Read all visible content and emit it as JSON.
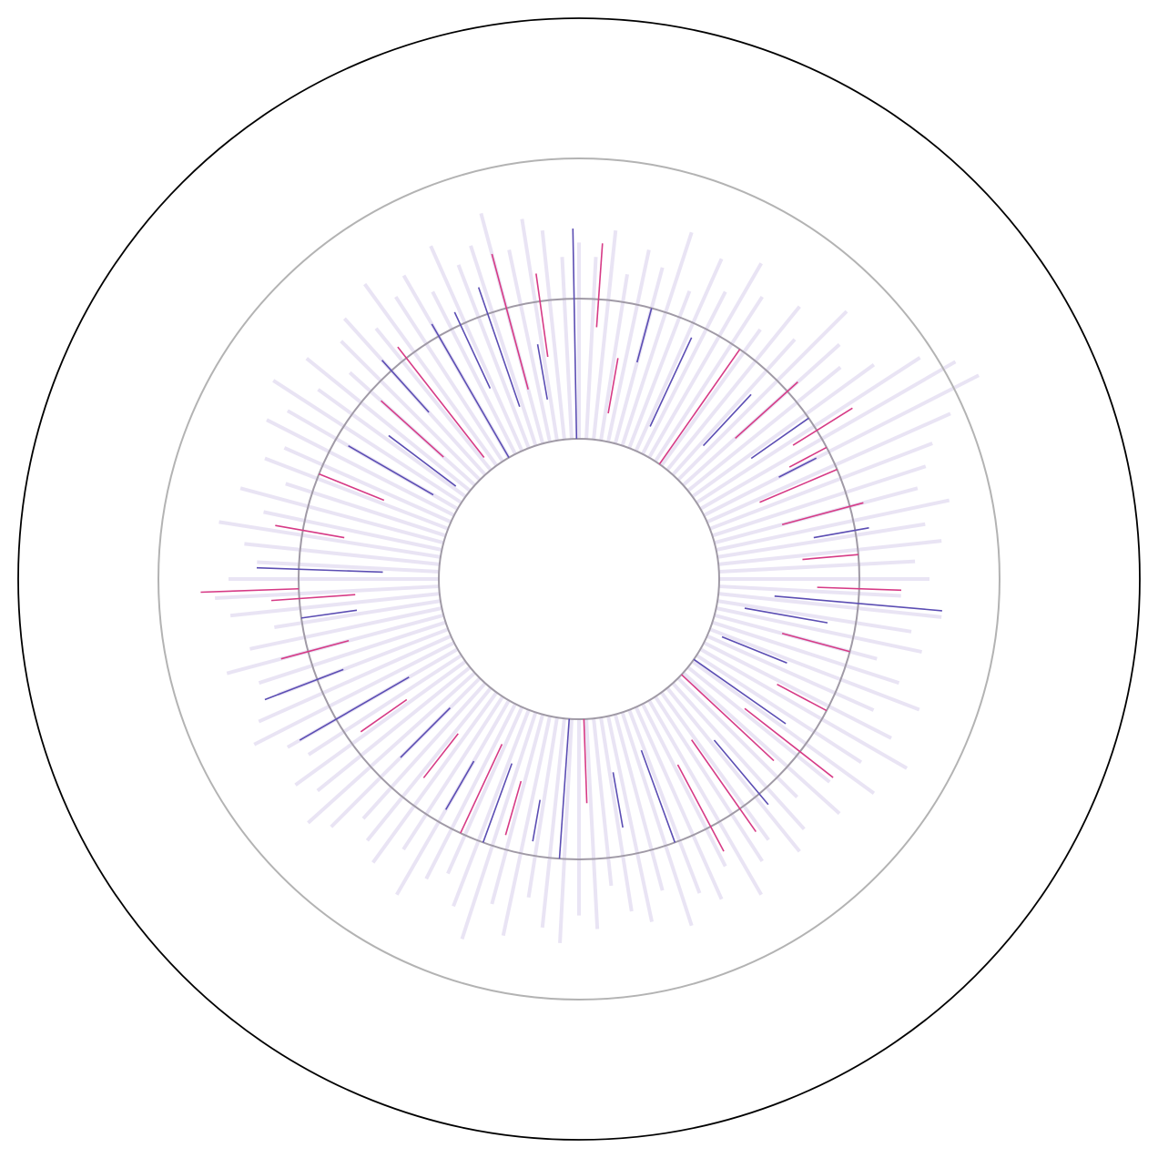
{
  "chart_data": {
    "type": "radial",
    "rlim": [
      0,
      4
    ],
    "rticks": [
      1,
      2,
      3,
      4
    ],
    "xlim": [
      0,
      360
    ],
    "background": {
      "color": "#e6e0f3",
      "x": [
        0,
        3,
        6,
        9,
        12,
        15,
        18,
        21,
        24,
        27,
        30,
        33,
        36,
        39,
        42,
        45,
        48,
        51,
        54,
        57,
        60,
        63,
        66,
        69,
        72,
        75,
        78,
        81,
        84,
        87,
        90,
        93,
        96,
        99,
        102,
        105,
        108,
        111,
        114,
        117,
        120,
        123,
        126,
        129,
        132,
        135,
        138,
        141,
        144,
        147,
        150,
        153,
        156,
        159,
        162,
        165,
        168,
        171,
        174,
        177,
        180,
        183,
        186,
        189,
        192,
        195,
        198,
        201,
        204,
        207,
        210,
        213,
        216,
        219,
        222,
        225,
        228,
        231,
        234,
        237,
        240,
        243,
        246,
        249,
        252,
        255,
        258,
        261,
        264,
        267,
        270,
        273,
        276,
        279,
        282,
        285,
        288,
        291,
        294,
        297,
        300,
        303,
        306,
        309,
        312,
        315,
        318,
        321,
        324,
        327,
        330,
        333,
        336,
        339,
        342,
        345,
        348,
        351,
        354,
        357
      ],
      "values": [
        2.4,
        2.3,
        2.5,
        2.2,
        2.4,
        2.3,
        2.6,
        2.2,
        2.5,
        2.3,
        2.6,
        2.4,
        2.2,
        2.5,
        2.3,
        2.7,
        2.5,
        2.4,
        2.6,
        2.9,
        3.1,
        3.2,
        2.9,
        2.7,
        2.6,
        2.5,
        2.7,
        2.5,
        2.6,
        2.4,
        2.5,
        2.3,
        2.6,
        2.4,
        2.5,
        2.2,
        2.4,
        2.6,
        2.3,
        2.5,
        2.7,
        2.4,
        2.6,
        2.3,
        2.5,
        2.2,
        2.4,
        2.5,
        2.3,
        2.4,
        2.6,
        2.3,
        2.5,
        2.4,
        2.6,
        2.3,
        2.5,
        2.4,
        2.2,
        2.5,
        2.4,
        2.6,
        2.5,
        2.3,
        2.6,
        2.4,
        2.7,
        2.5,
        2.3,
        2.4,
        2.6,
        2.3,
        2.5,
        2.4,
        2.3,
        2.5,
        2.6,
        2.4,
        2.5,
        2.3,
        2.4,
        2.6,
        2.5,
        2.3,
        2.4,
        2.6,
        2.4,
        2.2,
        2.5,
        2.6,
        2.5,
        2.3,
        2.4,
        2.6,
        2.3,
        2.5,
        2.2,
        2.4,
        2.3,
        2.5,
        2.4,
        2.6,
        2.3,
        2.5,
        2.2,
        2.4,
        2.5,
        2.3,
        2.6,
        2.4,
        2.5,
        2.3,
        2.6,
        2.4,
        2.5,
        2.7,
        2.4,
        2.6,
        2.5,
        2.3
      ]
    },
    "segments": [
      {
        "color": "#5b4db3",
        "x": [
          359,
          341,
          335,
          25,
          43,
          55,
          63,
          100,
          112,
          125,
          140,
          160,
          170,
          184,
          200,
          210,
          225,
          240,
          249,
          262,
          272,
          300,
          307,
          318,
          330,
          15,
          80,
          95,
          190,
          350
        ],
        "start": [
          1.0,
          1.3,
          1.5,
          1.2,
          1.3,
          1.5,
          1.6,
          1.2,
          1.1,
          1.0,
          1.5,
          1.3,
          1.4,
          1.0,
          1.4,
          1.5,
          1.3,
          1.4,
          1.8,
          1.6,
          1.4,
          1.2,
          1.1,
          1.6,
          1.0,
          1.6,
          1.7,
          1.4,
          1.6,
          1.3
        ],
        "end": [
          2.5,
          2.2,
          2.1,
          1.9,
          1.8,
          2.0,
          1.9,
          1.8,
          1.6,
          1.8,
          2.1,
          2.0,
          1.8,
          2.0,
          2.0,
          1.9,
          1.8,
          2.3,
          2.4,
          2.0,
          2.3,
          1.9,
          1.7,
          2.1,
          2.1,
          2.0,
          2.1,
          2.6,
          1.9,
          1.7
        ]
      },
      {
        "color": "#d63a86",
        "x": [
          4,
          10,
          35,
          48,
          58,
          67,
          75,
          85,
          92,
          105,
          118,
          133,
          145,
          152,
          178,
          196,
          205,
          218,
          235,
          255,
          266,
          268,
          280,
          292,
          312,
          322,
          345,
          352,
          128,
          62
        ],
        "start": [
          1.8,
          1.2,
          1.0,
          1.5,
          1.8,
          1.4,
          1.5,
          1.6,
          1.7,
          1.5,
          1.6,
          1.0,
          1.4,
          1.5,
          1.0,
          1.5,
          1.3,
          1.4,
          1.5,
          1.7,
          1.6,
          2.0,
          1.7,
          1.5,
          1.3,
          1.1,
          1.4,
          1.6,
          1.5,
          1.7
        ],
        "end": [
          2.4,
          1.6,
          2.0,
          2.1,
          2.3,
          2.0,
          2.1,
          2.0,
          2.3,
          2.0,
          2.0,
          1.9,
          2.2,
          2.2,
          1.6,
          1.9,
          2.0,
          1.8,
          1.9,
          2.2,
          2.2,
          2.7,
          2.2,
          2.0,
          1.9,
          2.1,
          2.4,
          2.2,
          2.3,
          2.0
        ]
      }
    ]
  }
}
